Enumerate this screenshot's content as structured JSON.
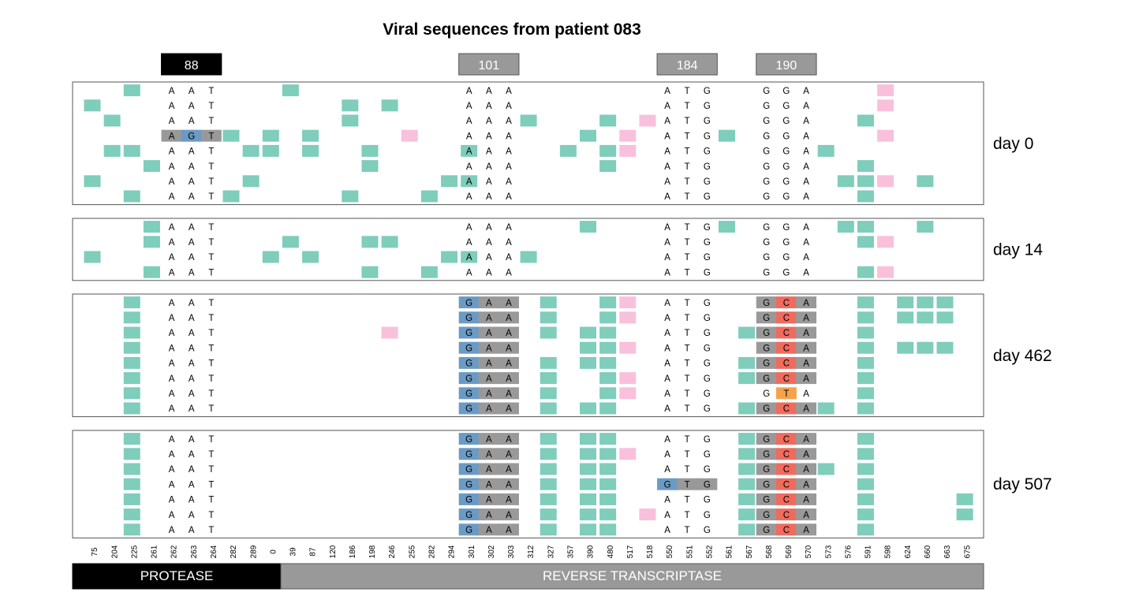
{
  "title": "Viral sequences from patient 083",
  "codons": [
    {
      "label": "88",
      "style": "dark"
    },
    {
      "label": "101",
      "style": "grey"
    },
    {
      "label": "184",
      "style": "grey"
    },
    {
      "label": "190",
      "style": "grey"
    }
  ],
  "positions": [
    "75",
    "204",
    "225",
    "261",
    "262",
    "263",
    "264",
    "282",
    "289",
    "0",
    "39",
    "87",
    "120",
    "186",
    "198",
    "246",
    "255",
    "282",
    "294",
    "301",
    "302",
    "303",
    "312",
    "327",
    "357",
    "390",
    "480",
    "517",
    "518",
    "550",
    "551",
    "552",
    "561",
    "567",
    "568",
    "569",
    "570",
    "573",
    "576",
    "591",
    "598",
    "624",
    "660",
    "663",
    "675"
  ],
  "regions": [
    {
      "label": "PROTEASE",
      "style": "dark"
    },
    {
      "label": "REVERSE TRANSCRIPTASE",
      "style": "grey"
    }
  ],
  "colors": {
    "teal": "#7fcdbb",
    "pink": "#f9c0dc",
    "blue": "#6b9ac4",
    "red": "#ef6b5e",
    "orange": "#f5a34a",
    "grey": "#999999",
    "dark": "#000000"
  },
  "panels": [
    {
      "label": "day 0",
      "rows": [
        {
          "teal": [
            2,
            10
          ],
          "pink": [
            40
          ],
          "n88": "AAT",
          "n101": "AAA",
          "n184": "ATG",
          "n190": "GGA"
        },
        {
          "teal": [
            0,
            13,
            15
          ],
          "pink": [
            40
          ],
          "n88": "AAT",
          "n101": "AAA",
          "n184": "ATG",
          "n190": "GGA"
        },
        {
          "teal": [
            1,
            13,
            22,
            26,
            39
          ],
          "pink": [
            28
          ],
          "n88": "AAT",
          "n101": "AAA",
          "n184": "ATG",
          "n190": "GGA"
        },
        {
          "teal": [
            7,
            9,
            11,
            25,
            32
          ],
          "pink": [
            16,
            27,
            40
          ],
          "n88": "AGT",
          "m88": [
            [
              "g",
              "b",
              "g"
            ]
          ],
          "n101": "AAA",
          "n184": "ATG",
          "n190": "GGA"
        },
        {
          "teal": [
            1,
            2,
            8,
            9,
            11,
            14,
            19,
            24,
            26,
            37
          ],
          "pink": [
            27
          ],
          "n88": "AAT",
          "n101": "AAA",
          "n184": "ATG",
          "n190": "GGA"
        },
        {
          "teal": [
            3,
            14,
            26,
            39
          ],
          "pink": [],
          "n88": "AAT",
          "n101": "AAA",
          "n184": "ATG",
          "n190": "GGA"
        },
        {
          "teal": [
            0,
            8,
            18,
            19,
            38,
            39,
            42
          ],
          "pink": [
            40
          ],
          "n88": "AAT",
          "n101": "AAA",
          "n184": "ATG",
          "n190": "GGA"
        },
        {
          "teal": [
            2,
            7,
            13,
            17,
            39
          ],
          "pink": [],
          "n88": "AAT",
          "n101": "AAA",
          "n184": "ATG",
          "n190": "GGA"
        }
      ]
    },
    {
      "label": "day 14",
      "rows": [
        {
          "teal": [
            3,
            25,
            32,
            38,
            39,
            42
          ],
          "pink": [],
          "n88": "AAT",
          "n101": "AAA",
          "n184": "ATG",
          "n190": "GGA"
        },
        {
          "teal": [
            3,
            10,
            14,
            15,
            39
          ],
          "pink": [
            40
          ],
          "n88": "AAT",
          "n101": "AAA",
          "n184": "ATG",
          "n190": "GGA"
        },
        {
          "teal": [
            0,
            9,
            11,
            18,
            19,
            22
          ],
          "pink": [],
          "n88": "AAT",
          "n101": "AAA",
          "n184": "ATG",
          "n190": "GGA"
        },
        {
          "teal": [
            3,
            14,
            17,
            39
          ],
          "pink": [
            40
          ],
          "n88": "AAT",
          "n101": "AAA",
          "n184": "ATG",
          "n190": "GGA"
        }
      ]
    },
    {
      "label": "day 462",
      "rows": [
        {
          "teal": [
            2,
            23,
            26,
            39,
            41,
            42,
            43
          ],
          "pink": [
            27
          ],
          "n88": "AAT",
          "n101": "GAA",
          "m101": "bgg",
          "n184": "ATG",
          "n190": "GCA",
          "m190": "grg"
        },
        {
          "teal": [
            2,
            23,
            26,
            39,
            41,
            42,
            43
          ],
          "pink": [
            27
          ],
          "n88": "AAT",
          "n101": "GAA",
          "m101": "bgg",
          "n184": "ATG",
          "n190": "GCA",
          "m190": "grg"
        },
        {
          "teal": [
            2,
            23,
            25,
            26,
            33,
            39
          ],
          "pink": [
            15
          ],
          "n88": "AAT",
          "n101": "GAA",
          "m101": "bgg",
          "n184": "ATG",
          "n190": "GCA",
          "m190": "grg"
        },
        {
          "teal": [
            2,
            25,
            26,
            39,
            41,
            42,
            43
          ],
          "pink": [
            27
          ],
          "n88": "AAT",
          "n101": "GAA",
          "m101": "bgg",
          "n184": "ATG",
          "n190": "GCA",
          "m190": "grg"
        },
        {
          "teal": [
            2,
            23,
            25,
            26,
            33,
            39
          ],
          "pink": [],
          "n88": "AAT",
          "n101": "GAA",
          "m101": "bgg",
          "n184": "ATG",
          "n190": "GCA",
          "m190": "grg"
        },
        {
          "teal": [
            2,
            23,
            26,
            33,
            39
          ],
          "pink": [
            27
          ],
          "n88": "AAT",
          "n101": "GAA",
          "m101": "bgg",
          "n184": "ATG",
          "n190": "GCA",
          "m190": "grg"
        },
        {
          "teal": [
            2,
            23,
            26,
            39
          ],
          "pink": [
            27
          ],
          "n88": "AAT",
          "n101": "GAA",
          "m101": "bgg",
          "n184": "ATG",
          "n190": "GTA",
          "m190": "-o-"
        },
        {
          "teal": [
            2,
            23,
            25,
            26,
            33,
            37,
            39
          ],
          "pink": [],
          "n88": "AAT",
          "n101": "GAA",
          "m101": "bgg",
          "n184": "ATG",
          "n190": "GCA",
          "m190": "grg"
        }
      ]
    },
    {
      "label": "day 507",
      "rows": [
        {
          "teal": [
            2,
            23,
            25,
            26,
            33,
            39
          ],
          "pink": [],
          "n88": "AAT",
          "n101": "GAA",
          "m101": "bgg",
          "n184": "ATG",
          "n190": "GCA",
          "m190": "grg"
        },
        {
          "teal": [
            2,
            23,
            25,
            26,
            33,
            39
          ],
          "pink": [
            27
          ],
          "n88": "AAT",
          "n101": "GAA",
          "m101": "bgg",
          "n184": "ATG",
          "n190": "GCA",
          "m190": "grg"
        },
        {
          "teal": [
            2,
            23,
            25,
            26,
            33,
            37,
            39
          ],
          "pink": [],
          "n88": "AAT",
          "n101": "GAA",
          "m101": "bgg",
          "n184": "ATG",
          "n190": "GCA",
          "m190": "grg"
        },
        {
          "teal": [
            2,
            23,
            25,
            26,
            33,
            39
          ],
          "pink": [],
          "n88": "AAT",
          "n101": "GAA",
          "m101": "bgg",
          "n184": "GTG",
          "m184": "bgg",
          "n190": "GCA",
          "m190": "grg"
        },
        {
          "teal": [
            2,
            23,
            25,
            26,
            33,
            39,
            44
          ],
          "pink": [],
          "n88": "AAT",
          "n101": "GAA",
          "m101": "bgg",
          "n184": "ATG",
          "n190": "GCA",
          "m190": "grg"
        },
        {
          "teal": [
            2,
            23,
            25,
            26,
            33,
            39,
            44
          ],
          "pink": [
            28
          ],
          "n88": "AAT",
          "n101": "GAA",
          "m101": "bgg",
          "n184": "ATG",
          "n190": "GCA",
          "m190": "grg"
        },
        {
          "teal": [
            2,
            23,
            25,
            26,
            33,
            39
          ],
          "pink": [],
          "n88": "AAT",
          "n101": "GAA",
          "m101": "bgg",
          "n184": "ATG",
          "n190": "GCA",
          "m190": "grg"
        }
      ]
    }
  ]
}
